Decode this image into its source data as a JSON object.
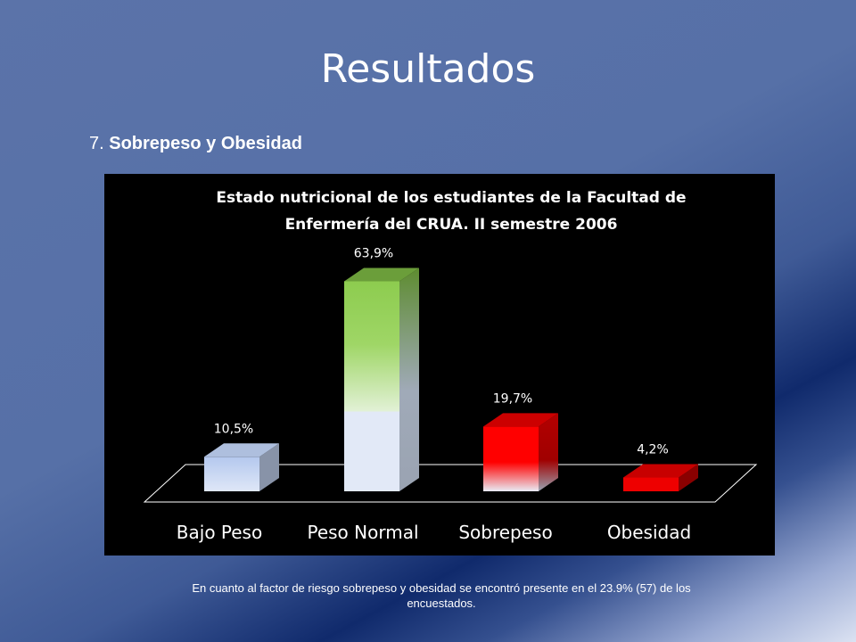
{
  "slide": {
    "title": "Resultados",
    "section_number": "7.",
    "section_title": "Sobrepeso y Obesidad",
    "caption": "En cuanto al factor de riesgo sobrepeso y obesidad  se encontró presente en el 23.9% (57) de los encuestados."
  },
  "chart_data": {
    "type": "bar",
    "title_lines": [
      "Estado nutricional de los estudiantes de la Facultad de",
      "Enfermería del CRUA. II semestre 2006"
    ],
    "categories": [
      "Bajo Peso",
      "Peso Normal",
      "Sobrepeso",
      "Obesidad"
    ],
    "values": [
      10.5,
      63.9,
      19.7,
      4.2
    ],
    "data_labels": [
      "10,5%",
      "63,9%",
      "19,7%",
      "4,2%"
    ],
    "ylim": [
      0,
      70
    ],
    "grid": false,
    "legend": "none",
    "colors": {
      "bajo_peso": "#b8cbef",
      "peso_normal": "#8ccc4e",
      "sobrepeso": "#ff0000",
      "obesidad": "#ee0000",
      "chart_background": "#000000",
      "text": "#ffffff"
    }
  }
}
